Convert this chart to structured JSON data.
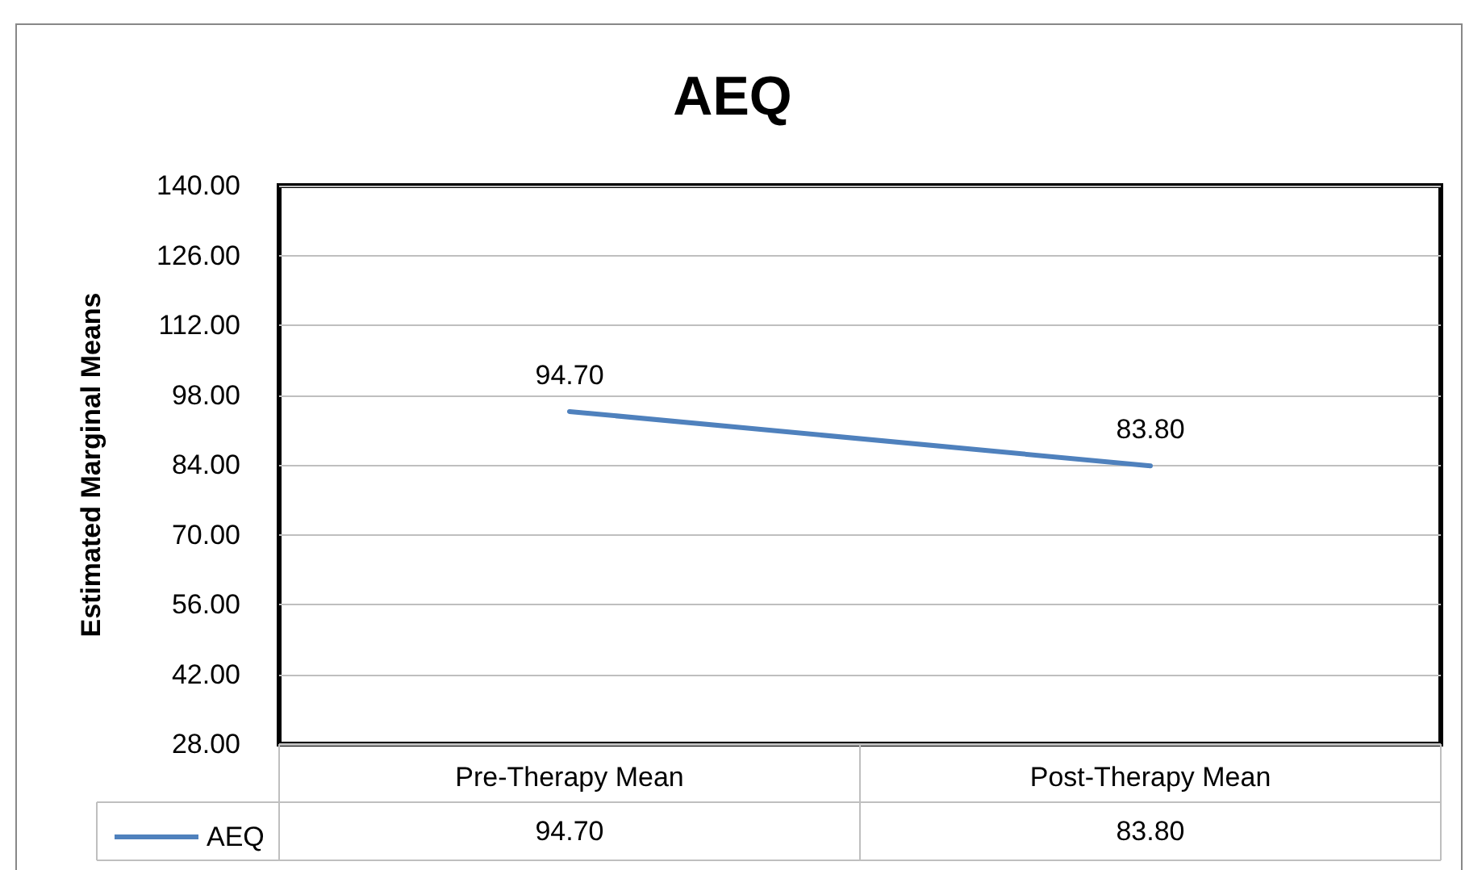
{
  "chart_data": {
    "type": "line",
    "title": "AEQ",
    "ylabel": "Estimated Marginal Means",
    "categories": [
      "Pre-Therapy Mean",
      "Post-Therapy Mean"
    ],
    "series": [
      {
        "name": "AEQ",
        "color": "#4f81bd",
        "values": [
          94.7,
          83.8
        ],
        "value_labels": [
          "94.70",
          "83.80"
        ]
      }
    ],
    "ylim": [
      28,
      140
    ],
    "yticks": [
      {
        "value": 28,
        "label": "28.00"
      },
      {
        "value": 42,
        "label": "42.00"
      },
      {
        "value": 56,
        "label": "56.00"
      },
      {
        "value": 70,
        "label": "70.00"
      },
      {
        "value": 84,
        "label": "84.00"
      },
      {
        "value": 98,
        "label": "98.00"
      },
      {
        "value": 112,
        "label": "112.00"
      },
      {
        "value": 126,
        "label": "126.00"
      },
      {
        "value": 140,
        "label": "140.00"
      }
    ],
    "grid": "y",
    "legend": "bottom",
    "data_labels": true,
    "marker": "none",
    "line_style": "solid"
  }
}
